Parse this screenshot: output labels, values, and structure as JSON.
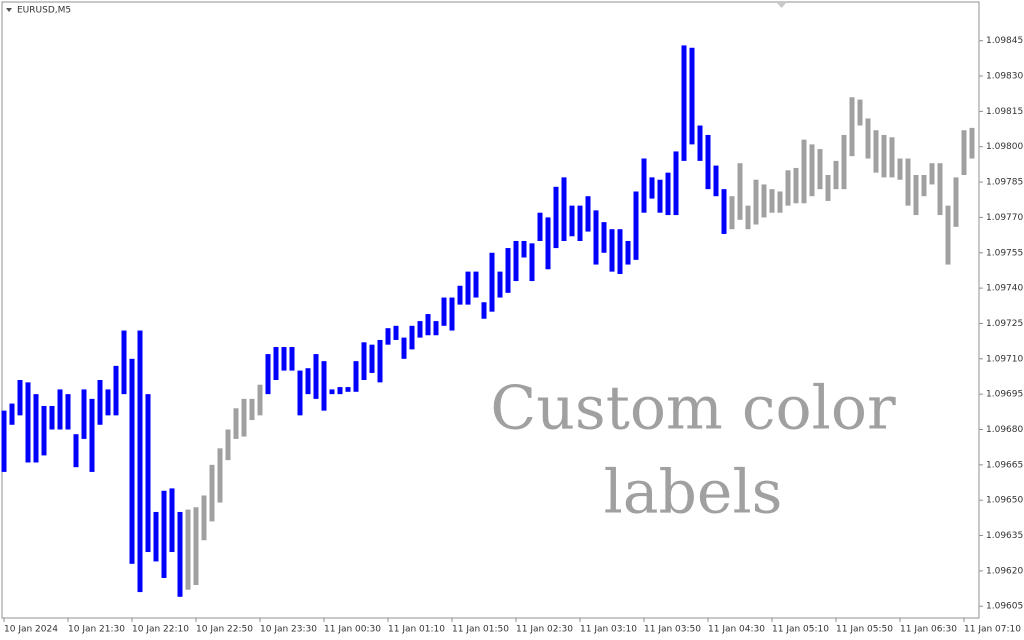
{
  "chart_data": {
    "type": "range-bar",
    "title": "EURUSD,M5",
    "annotation": [
      "Custom color",
      "labels"
    ],
    "categories": [
      "10 Jan 2024",
      null,
      null,
      null,
      null,
      null,
      null,
      null,
      "10 Jan 21:30",
      null,
      null,
      null,
      null,
      null,
      null,
      null,
      "10 Jan 22:10",
      null,
      null,
      null,
      null,
      null,
      null,
      null,
      "10 Jan 22:50",
      null,
      null,
      null,
      null,
      null,
      null,
      null,
      "10 Jan 23:30",
      null,
      null,
      null,
      null,
      null,
      null,
      null,
      "11 Jan 00:30",
      null,
      null,
      null,
      null,
      null,
      null,
      null,
      "11 Jan 01:10",
      null,
      null,
      null,
      null,
      null,
      null,
      null,
      "11 Jan 01:50",
      null,
      null,
      null,
      null,
      null,
      null,
      null,
      "11 Jan 02:30",
      null,
      null,
      null,
      null,
      null,
      null,
      null,
      "11 Jan 03:10",
      null,
      null,
      null,
      null,
      null,
      null,
      null,
      "11 Jan 03:50",
      null,
      null,
      null,
      null,
      null,
      null,
      null,
      "11 Jan 04:30",
      null,
      null,
      null,
      null,
      null,
      null,
      null,
      "11 Jan 05:10",
      null,
      null,
      null,
      null,
      null,
      null,
      null,
      "11 Jan 05:50",
      null,
      null,
      null,
      null,
      null,
      null,
      null,
      "11 Jan 06:30",
      null,
      null,
      null,
      null,
      null,
      null,
      null,
      "11 Jan 07:10",
      null
    ],
    "highs": [
      1.09688,
      1.09691,
      1.09701,
      1.097,
      1.09695,
      1.0969,
      1.0969,
      1.09697,
      1.09695,
      1.09678,
      1.09697,
      1.09693,
      1.09701,
      1.09697,
      1.09707,
      1.09722,
      1.0971,
      1.09722,
      1.09695,
      1.09645,
      1.09654,
      1.09655,
      1.09645,
      1.09646,
      1.09647,
      1.09652,
      1.09665,
      1.09672,
      1.0968,
      1.09689,
      1.09693,
      1.09693,
      1.09699,
      1.09712,
      1.09715,
      1.09715,
      1.09715,
      1.09705,
      1.09706,
      1.09712,
      1.09709,
      1.09697,
      1.09698,
      1.09698,
      1.09709,
      1.09717,
      1.09716,
      1.09718,
      1.09723,
      1.09724,
      1.09719,
      1.09724,
      1.09726,
      1.09729,
      1.09726,
      1.09736,
      1.09736,
      1.09741,
      1.09747,
      1.09747,
      1.09734,
      1.09755,
      1.09747,
      1.09757,
      1.0976,
      1.0976,
      1.09759,
      1.09772,
      1.0977,
      1.09783,
      1.09787,
      1.09775,
      1.09775,
      1.09779,
      1.09773,
      1.09768,
      1.09765,
      1.09765,
      1.0976,
      1.09781,
      1.09795,
      1.09787,
      1.09786,
      1.09789,
      1.09798,
      1.09843,
      1.09842,
      1.09809,
      1.09805,
      1.09792,
      1.09782,
      1.09779,
      1.09793,
      1.09775,
      1.09786,
      1.09784,
      1.09782,
      1.09781,
      1.0979,
      1.09791,
      1.09803,
      1.09801,
      1.09799,
      1.09788,
      1.09794,
      1.09805,
      1.09821,
      1.0982,
      1.09812,
      1.09807,
      1.09805,
      1.09804,
      1.09795,
      1.09795,
      1.09788,
      1.09788,
      1.09793,
      1.09793,
      1.09775,
      1.09787,
      1.09807,
      1.09808
    ],
    "lows": [
      1.09662,
      1.09682,
      1.09686,
      1.09666,
      1.09666,
      1.09669,
      1.0968,
      1.0968,
      1.0968,
      1.09664,
      1.09676,
      1.09662,
      1.09682,
      1.09686,
      1.09686,
      1.09695,
      1.09623,
      1.09611,
      1.09628,
      1.09624,
      1.09617,
      1.09628,
      1.09609,
      1.09612,
      1.09614,
      1.09633,
      1.09641,
      1.09649,
      1.09667,
      1.09676,
      1.09677,
      1.09684,
      1.09686,
      1.09695,
      1.09701,
      1.09705,
      1.09705,
      1.09686,
      1.09695,
      1.09693,
      1.09688,
      1.09695,
      1.09695,
      1.09696,
      1.09696,
      1.09701,
      1.09704,
      1.097,
      1.09716,
      1.09718,
      1.0971,
      1.09714,
      1.09719,
      1.0972,
      1.0972,
      1.09724,
      1.09722,
      1.09733,
      1.09733,
      1.09736,
      1.09727,
      1.0973,
      1.09736,
      1.09738,
      1.09743,
      1.09753,
      1.09743,
      1.0976,
      1.09748,
      1.09757,
      1.0976,
      1.09762,
      1.0976,
      1.09764,
      1.0975,
      1.09755,
      1.09747,
      1.09746,
      1.0975,
      1.09752,
      1.09772,
      1.09778,
      1.09772,
      1.09771,
      1.09771,
      1.09794,
      1.09801,
      1.09794,
      1.09782,
      1.09779,
      1.09763,
      1.09765,
      1.09769,
      1.09765,
      1.09767,
      1.0977,
      1.09772,
      1.09772,
      1.09775,
      1.09776,
      1.09776,
      1.09779,
      1.09782,
      1.09777,
      1.09782,
      1.09782,
      1.09796,
      1.09809,
      1.09795,
      1.09789,
      1.09787,
      1.09787,
      1.09786,
      1.09775,
      1.09771,
      1.09779,
      1.09784,
      1.09771,
      1.0975,
      1.09766,
      1.09788,
      1.09795
    ],
    "colors": [
      "#0000ff",
      "#0000ff",
      "#0000ff",
      "#0000ff",
      "#0000ff",
      "#0000ff",
      "#0000ff",
      "#0000ff",
      "#0000ff",
      "#0000ff",
      "#0000ff",
      "#0000ff",
      "#0000ff",
      "#0000ff",
      "#0000ff",
      "#0000ff",
      "#0000ff",
      "#0000ff",
      "#0000ff",
      "#0000ff",
      "#0000ff",
      "#0000ff",
      "#0000ff",
      "#a0a0a0",
      "#a0a0a0",
      "#a0a0a0",
      "#a0a0a0",
      "#a0a0a0",
      "#a0a0a0",
      "#a0a0a0",
      "#a0a0a0",
      "#a0a0a0",
      "#a0a0a0",
      "#0000ff",
      "#0000ff",
      "#0000ff",
      "#0000ff",
      "#0000ff",
      "#0000ff",
      "#0000ff",
      "#0000ff",
      "#0000ff",
      "#0000ff",
      "#0000ff",
      "#0000ff",
      "#0000ff",
      "#0000ff",
      "#0000ff",
      "#0000ff",
      "#0000ff",
      "#0000ff",
      "#0000ff",
      "#0000ff",
      "#0000ff",
      "#0000ff",
      "#0000ff",
      "#0000ff",
      "#0000ff",
      "#0000ff",
      "#0000ff",
      "#0000ff",
      "#0000ff",
      "#0000ff",
      "#0000ff",
      "#0000ff",
      "#0000ff",
      "#0000ff",
      "#0000ff",
      "#0000ff",
      "#0000ff",
      "#0000ff",
      "#0000ff",
      "#0000ff",
      "#0000ff",
      "#0000ff",
      "#0000ff",
      "#0000ff",
      "#0000ff",
      "#0000ff",
      "#0000ff",
      "#0000ff",
      "#0000ff",
      "#0000ff",
      "#0000ff",
      "#0000ff",
      "#0000ff",
      "#0000ff",
      "#0000ff",
      "#0000ff",
      "#0000ff",
      "#0000ff",
      "#a0a0a0",
      "#a0a0a0",
      "#a0a0a0",
      "#a0a0a0",
      "#a0a0a0",
      "#a0a0a0",
      "#a0a0a0",
      "#a0a0a0",
      "#a0a0a0",
      "#a0a0a0",
      "#a0a0a0",
      "#a0a0a0",
      "#a0a0a0",
      "#a0a0a0",
      "#a0a0a0",
      "#a0a0a0",
      "#a0a0a0",
      "#a0a0a0",
      "#a0a0a0",
      "#a0a0a0",
      "#a0a0a0",
      "#a0a0a0",
      "#a0a0a0",
      "#a0a0a0",
      "#a0a0a0",
      "#a0a0a0",
      "#a0a0a0",
      "#a0a0a0",
      "#a0a0a0",
      "#a0a0a0",
      "#a0a0a0"
    ],
    "ylim": [
      1.096,
      1.09861
    ],
    "yticks": [
      1.09845,
      {
        "value": 1.0983,
        "label": "1.09830"
      },
      1.09815,
      {
        "value": 1.098,
        "label": "1.09800"
      },
      1.09785,
      {
        "value": 1.0977,
        "label": "1.09770"
      },
      1.09755,
      {
        "value": 1.0974,
        "label": "1.09740"
      },
      1.09725,
      {
        "value": 1.0971,
        "label": "1.09710"
      },
      1.09695,
      {
        "value": 1.0968,
        "label": "1.09680"
      },
      1.09665,
      {
        "value": 1.0965,
        "label": "1.09650"
      },
      1.09635,
      {
        "value": 1.0962,
        "label": "1.09620"
      },
      1.09605
    ]
  }
}
